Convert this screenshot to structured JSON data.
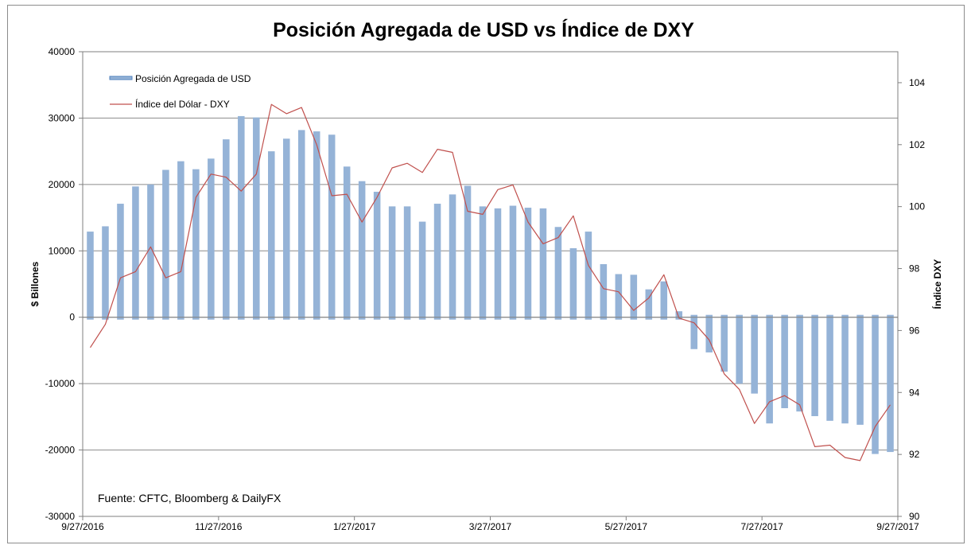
{
  "chart_data": {
    "type": "bar+line",
    "title": "Posición Agregada de USD vs Índice de DXY",
    "ylabel": "$ Billones",
    "y2label": "Índice DXY",
    "ylim": [
      -30000,
      40000
    ],
    "y2lim": [
      90,
      105
    ],
    "yticks": [
      "40000",
      "30000",
      "20000",
      "10000",
      "0",
      "-10000",
      "-20000",
      "-30000"
    ],
    "y2ticks": [
      "104",
      "102",
      "100",
      "98",
      "96",
      "94",
      "92",
      "90"
    ],
    "xticks": [
      "9/27/2016",
      "11/27/2016",
      "1/27/2017",
      "3/27/2017",
      "5/27/2017",
      "7/27/2017",
      "9/27/2017"
    ],
    "source": "Fuente: CFTC, Bloomberg & DailyFX",
    "legend": [
      {
        "name": "Posición Agregada de USD",
        "kind": "bar",
        "color": "#95b3d7"
      },
      {
        "name": "Índice del Dólar - DXY",
        "kind": "line",
        "color": "#c0504d"
      }
    ],
    "series": [
      {
        "name": "Posición Agregada de USD",
        "kind": "bar",
        "values": [
          12900,
          13700,
          17100,
          19700,
          20000,
          22200,
          23500,
          22300,
          23900,
          26800,
          30300,
          30100,
          25000,
          26900,
          28200,
          28000,
          27500,
          22700,
          20500,
          18900,
          16700,
          16700,
          14400,
          17100,
          18500,
          19800,
          16700,
          16400,
          16800,
          16500,
          16400,
          13600,
          10400,
          12900,
          8000,
          6500,
          6400,
          4200,
          5400,
          900,
          -4800,
          -5300,
          -8200,
          -10000,
          -11500,
          -16000,
          -13700,
          -14200,
          -14900,
          -15600,
          -16000,
          -16200,
          -20600,
          -20300
        ]
      },
      {
        "name": "Índice del Dólar - DXY",
        "kind": "line",
        "values": [
          95.45,
          96.2,
          97.7,
          97.9,
          98.7,
          97.7,
          97.9,
          100.3,
          101.05,
          100.95,
          100.5,
          101.05,
          103.3,
          103.0,
          103.2,
          102.0,
          100.35,
          100.4,
          99.5,
          100.3,
          101.25,
          101.4,
          101.1,
          101.85,
          101.75,
          99.85,
          99.75,
          100.55,
          100.7,
          99.5,
          98.8,
          99.0,
          99.7,
          98.1,
          97.35,
          97.25,
          96.65,
          97.05,
          97.8,
          96.4,
          96.25,
          95.7,
          94.6,
          94.1,
          93.0,
          93.7,
          93.9,
          93.6,
          92.25,
          92.3,
          91.9,
          91.8,
          92.9,
          93.6
        ]
      }
    ]
  }
}
